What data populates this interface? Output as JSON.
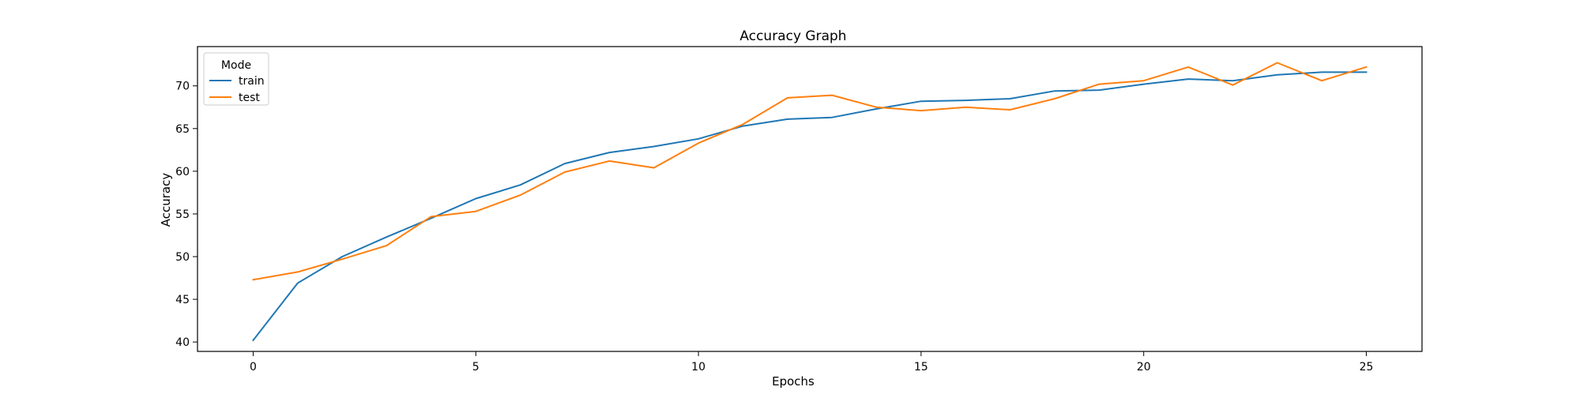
{
  "chart_data": {
    "type": "line",
    "title": "Accuracy Graph",
    "xlabel": "Epochs",
    "ylabel": "Accuracy",
    "xlim": [
      -1.25,
      26.25
    ],
    "ylim": [
      38.9,
      74.6
    ],
    "xticks": [
      0,
      5,
      10,
      15,
      20,
      25
    ],
    "yticks": [
      40,
      45,
      50,
      55,
      60,
      65,
      70
    ],
    "grid": false,
    "legend": {
      "title": "Mode",
      "placement": "top-left"
    },
    "x": [
      0,
      1,
      2,
      3,
      4,
      5,
      6,
      7,
      8,
      9,
      10,
      11,
      12,
      13,
      14,
      15,
      16,
      17,
      18,
      19,
      20,
      21,
      22,
      23,
      24,
      25
    ],
    "series": [
      {
        "name": "train",
        "color": "#1f77b4",
        "values": [
          40.2,
          46.9,
          50.0,
          52.3,
          54.5,
          56.8,
          58.4,
          60.9,
          62.2,
          62.9,
          63.8,
          65.3,
          66.1,
          66.3,
          67.3,
          68.2,
          68.3,
          68.5,
          69.4,
          69.5,
          70.2,
          70.8,
          70.6,
          71.3,
          71.6,
          71.6
        ]
      },
      {
        "name": "test",
        "color": "#ff7f0e",
        "values": [
          47.3,
          48.2,
          49.7,
          51.3,
          54.7,
          55.3,
          57.2,
          59.9,
          61.2,
          60.4,
          63.3,
          65.5,
          68.6,
          68.9,
          67.5,
          67.1,
          67.5,
          67.2,
          68.5,
          70.2,
          70.6,
          72.2,
          70.1,
          72.7,
          70.6,
          72.2
        ]
      }
    ]
  }
}
